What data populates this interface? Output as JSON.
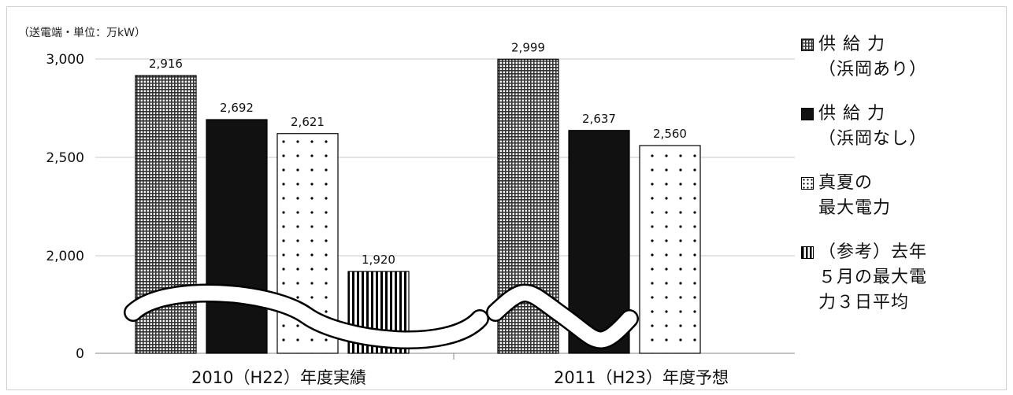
{
  "chart_data": {
    "type": "bar",
    "title": "",
    "unit_note": "（送電端・単位：万kW）",
    "categories": [
      "2010（H22）年度実績",
      "2011（H23）年度予想"
    ],
    "series": [
      {
        "name": "供 給 力\n（浜岡あり）",
        "pattern": "crosshatch",
        "values": [
          2916,
          2999
        ]
      },
      {
        "name": "供 給 力\n（浜岡なし）",
        "pattern": "solid-black",
        "values": [
          2692,
          2637
        ]
      },
      {
        "name": "真夏の\n最大電力",
        "pattern": "dots",
        "values": [
          2621,
          2560
        ]
      },
      {
        "name": "（参考）去年\n５月の最大電\n力３日平均",
        "pattern": "vertical-stripes",
        "values": [
          1920,
          null
        ]
      }
    ],
    "y_ticks": [
      "0",
      "2,000",
      "2,500",
      "3,000"
    ],
    "axis_break": true,
    "ylim": [
      0,
      3000
    ],
    "grid": true,
    "legend_position": "right"
  }
}
